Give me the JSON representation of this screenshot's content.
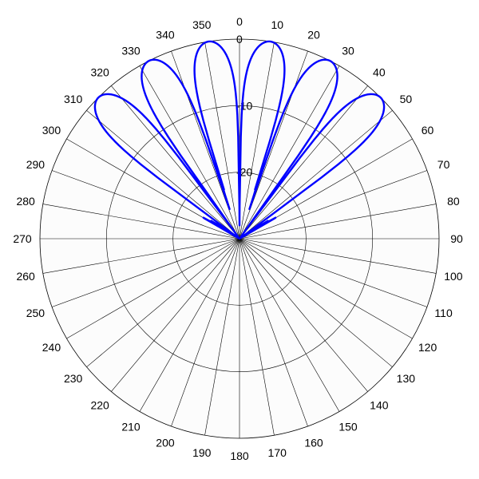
{
  "chart_data": {
    "type": "polar-line",
    "title": "",
    "angle_unit": "degrees",
    "angle_zero": "top",
    "angle_direction": "clockwise",
    "angle_ticks": [
      "0",
      "10",
      "20",
      "30",
      "40",
      "50",
      "60",
      "70",
      "80",
      "90",
      "100",
      "110",
      "120",
      "130",
      "140",
      "150",
      "160",
      "170",
      "180",
      "190",
      "200",
      "210",
      "220",
      "230",
      "240",
      "250",
      "260",
      "270",
      "280",
      "290",
      "300",
      "310",
      "320",
      "330",
      "340",
      "350"
    ],
    "radial_ticks": [
      "0",
      "-10",
      "-20"
    ],
    "radial_range": [
      -30,
      0
    ],
    "grid": true,
    "series_color": "#0000ff",
    "series": [
      {
        "main_lobes": [
          {
            "angle": -45,
            "peak_db": 0
          },
          {
            "angle": -27,
            "peak_db": 0
          },
          {
            "angle": -9,
            "peak_db": 0
          },
          {
            "angle": 9,
            "peak_db": 0
          },
          {
            "angle": 27,
            "peak_db": 0
          },
          {
            "angle": 45,
            "peak_db": 0
          }
        ],
        "main_lobe_halfwidth_deg": 8.5,
        "sidelobe_region": [
          -60,
          60
        ],
        "sidelobe_db": [
          -20,
          -28
        ]
      }
    ]
  }
}
